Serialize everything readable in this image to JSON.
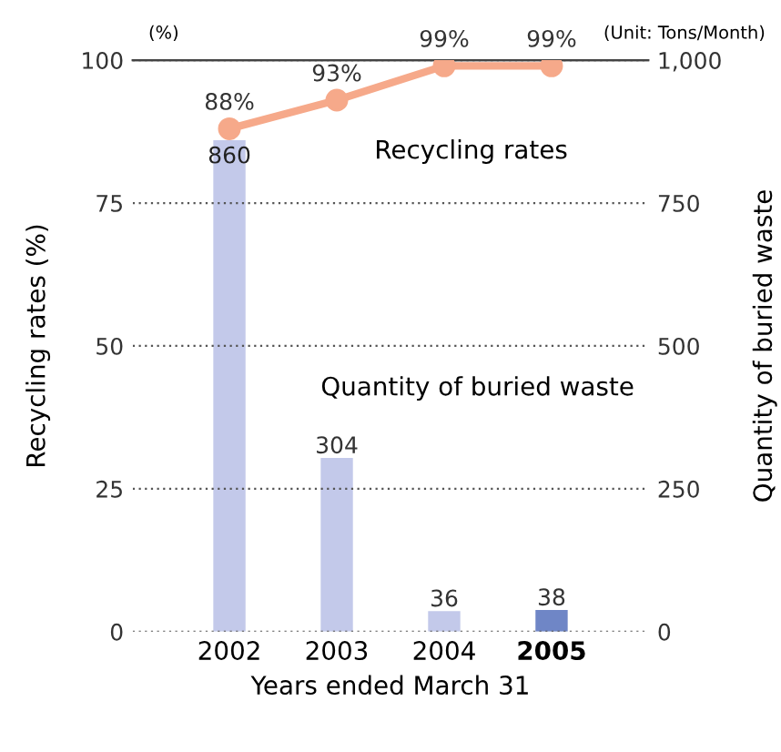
{
  "chart_data": {
    "type": "bar",
    "categories": [
      "2002",
      "2003",
      "2004",
      "2005"
    ],
    "xlabel": "Years ended March 31",
    "ylabel": "Recycling rates (%)",
    "y2label": "Quantity of buried waste",
    "ylim": [
      0,
      100
    ],
    "yticks": [
      0,
      25,
      50,
      75,
      100
    ],
    "y2lim": [
      0,
      1000
    ],
    "y2ticks": [
      0,
      250,
      500,
      750,
      {
        "value": 1000,
        "label": "1,000"
      }
    ],
    "grid": "y",
    "annotations": [
      "(%)",
      "(Unit: Tons/Month)"
    ],
    "series": [
      {
        "name": "Quantity of buried waste",
        "axis": "y2",
        "colors": [
          "#c3c9ea",
          "#c3c9ea",
          "#c3c9ea",
          "#6f86c6"
        ],
        "values": [
          860,
          304,
          36,
          38
        ],
        "data_labels": true
      },
      {
        "name": "Recycling rates",
        "type": "line",
        "axis": "y",
        "color": "#f6a98a",
        "marker": "circle",
        "values": [
          88,
          93,
          99,
          99
        ],
        "value_labels": [
          "88%",
          "93%",
          "99%",
          "99%"
        ]
      }
    ]
  }
}
